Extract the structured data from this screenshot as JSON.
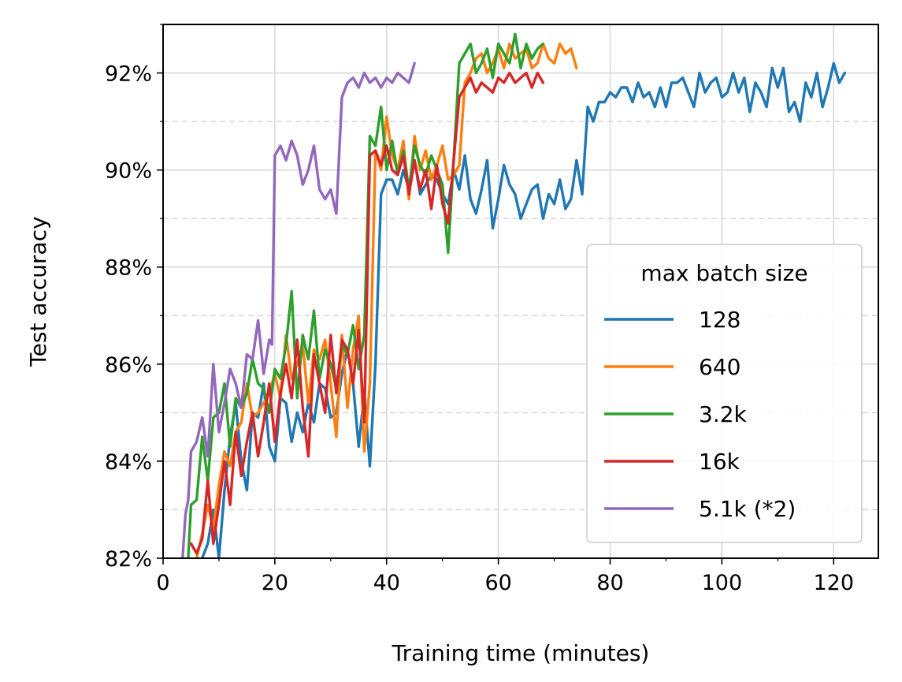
{
  "chart_data": {
    "type": "line",
    "title": "",
    "xlabel": "Training time (minutes)",
    "ylabel": "Test accuracy",
    "xlim": [
      0,
      128
    ],
    "ylim": [
      82,
      93
    ],
    "x_ticks": [
      0,
      20,
      40,
      60,
      80,
      100,
      120
    ],
    "x_tick_labels": [
      "0",
      "20",
      "40",
      "60",
      "80",
      "100",
      "120"
    ],
    "y_ticks": [
      82,
      84,
      86,
      88,
      90,
      92
    ],
    "y_tick_labels": [
      "82%",
      "84%",
      "86%",
      "88%",
      "90%",
      "92%"
    ],
    "y_minor_dashed_grid": [
      83,
      85,
      87,
      89,
      91
    ],
    "grid": true,
    "legend_title": "max batch size",
    "legend_position": "lower right",
    "series": [
      {
        "name": "128",
        "color": "#1f77b4",
        "x": [
          7,
          8,
          9,
          10,
          11,
          12,
          13,
          14,
          15,
          16,
          17,
          18,
          19,
          20,
          21,
          22,
          23,
          24,
          25,
          26,
          27,
          28,
          29,
          30,
          31,
          32,
          33,
          34,
          35,
          36,
          37,
          38,
          39,
          40,
          41,
          42,
          43,
          44,
          45,
          46,
          47,
          48,
          49,
          50,
          51,
          52,
          53,
          54,
          55,
          56,
          57,
          58,
          59,
          60,
          61,
          62,
          63,
          64,
          65,
          66,
          67,
          68,
          69,
          70,
          71,
          72,
          73,
          74,
          75,
          76,
          77,
          78,
          79,
          80,
          81,
          82,
          83,
          84,
          85,
          86,
          87,
          88,
          89,
          90,
          91,
          92,
          93,
          94,
          95,
          96,
          97,
          98,
          99,
          100,
          101,
          102,
          103,
          104,
          105,
          106,
          107,
          108,
          109,
          110,
          111,
          112,
          113,
          114,
          115,
          116,
          117,
          118,
          119,
          120,
          121,
          122
        ],
        "values": [
          82.0,
          82.3,
          83.0,
          82.0,
          83.4,
          84.5,
          85.2,
          84.0,
          83.4,
          85.0,
          84.9,
          85.6,
          84.3,
          84.0,
          85.3,
          85.2,
          84.4,
          85.0,
          84.6,
          85.2,
          84.8,
          85.6,
          85.5,
          84.9,
          85.0,
          85.8,
          86.3,
          85.6,
          84.3,
          85.4,
          83.9,
          86.0,
          89.5,
          89.8,
          89.8,
          89.5,
          90.0,
          89.6,
          90.2,
          89.5,
          89.7,
          89.9,
          89.8,
          89.5,
          89.3,
          90.0,
          89.6,
          90.3,
          89.4,
          89.1,
          89.6,
          90.2,
          88.8,
          89.4,
          90.1,
          89.7,
          89.5,
          89.0,
          89.3,
          89.6,
          89.7,
          89.0,
          89.5,
          89.3,
          89.8,
          89.2,
          89.4,
          90.2,
          89.5,
          91.3,
          91.0,
          91.4,
          91.4,
          91.6,
          91.5,
          91.7,
          91.7,
          91.4,
          91.8,
          91.5,
          91.6,
          91.3,
          91.7,
          91.3,
          91.8,
          91.8,
          91.9,
          91.6,
          91.3,
          92.0,
          91.6,
          91.8,
          91.9,
          91.5,
          91.6,
          92.0,
          91.6,
          91.9,
          91.2,
          91.8,
          91.6,
          91.3,
          92.1,
          91.7,
          92.1,
          91.2,
          91.4,
          91.0,
          91.8,
          91.5,
          92.0,
          91.3,
          91.7,
          92.2,
          91.8,
          92.0
        ]
      },
      {
        "name": "640",
        "color": "#ff7f0e",
        "x": [
          6,
          7,
          8,
          9,
          10,
          11,
          12,
          13,
          14,
          15,
          16,
          17,
          18,
          19,
          20,
          21,
          22,
          23,
          24,
          25,
          26,
          27,
          28,
          29,
          30,
          31,
          32,
          33,
          34,
          35,
          36,
          37,
          38,
          39,
          40,
          41,
          42,
          43,
          44,
          45,
          46,
          47,
          48,
          49,
          50,
          51,
          52,
          53,
          54,
          55,
          56,
          57,
          58,
          59,
          60,
          61,
          62,
          63,
          64,
          65,
          66,
          67,
          68,
          69,
          70,
          71,
          72,
          73,
          74
        ],
        "values": [
          82.0,
          82.5,
          83.1,
          82.6,
          83.5,
          84.2,
          83.9,
          84.6,
          84.8,
          85.6,
          84.9,
          85.0,
          85.2,
          85.4,
          85.8,
          85.3,
          86.6,
          85.7,
          86.0,
          86.4,
          85.2,
          86.3,
          86.1,
          86.5,
          85.6,
          84.5,
          86.6,
          85.1,
          86.3,
          87.0,
          84.2,
          85.6,
          90.4,
          90.0,
          91.1,
          90.3,
          90.0,
          90.6,
          89.4,
          90.7,
          90.0,
          90.4,
          89.8,
          90.1,
          90.5,
          89.8,
          89.9,
          90.1,
          91.8,
          92.0,
          92.3,
          92.4,
          92.0,
          92.2,
          92.5,
          92.1,
          92.6,
          92.3,
          92.4,
          92.5,
          92.1,
          92.2,
          92.6,
          92.3,
          92.2,
          92.6,
          92.4,
          92.5,
          92.1
        ]
      },
      {
        "name": "3.2k",
        "color": "#2ca02c",
        "x": [
          4.5,
          5,
          6,
          7,
          8,
          9,
          10,
          11,
          12,
          13,
          14,
          15,
          16,
          17,
          18,
          19,
          20,
          21,
          22,
          23,
          24,
          25,
          26,
          27,
          28,
          29,
          30,
          31,
          32,
          33,
          34,
          35,
          36,
          37,
          38,
          39,
          40,
          41,
          42,
          43,
          44,
          45,
          46,
          47,
          48,
          49,
          50,
          51,
          52,
          53,
          54,
          55,
          56,
          57,
          58,
          59,
          60,
          61,
          62,
          63,
          64,
          65,
          66,
          67,
          68
        ],
        "values": [
          82.0,
          83.1,
          83.2,
          84.5,
          83.6,
          84.9,
          85.0,
          85.6,
          84.3,
          85.3,
          85.1,
          85.4,
          86.1,
          85.6,
          85.5,
          85.0,
          85.9,
          85.7,
          86.4,
          87.5,
          85.3,
          86.6,
          86.1,
          87.1,
          85.7,
          86.3,
          86.0,
          85.5,
          86.4,
          86.2,
          86.8,
          85.9,
          86.6,
          90.7,
          90.5,
          91.3,
          90.0,
          90.6,
          89.9,
          90.4,
          89.6,
          90.5,
          90.1,
          89.9,
          90.3,
          90.0,
          89.7,
          88.3,
          90.2,
          92.2,
          92.4,
          92.6,
          92.0,
          92.2,
          92.5,
          91.9,
          92.6,
          92.4,
          92.2,
          92.8,
          92.1,
          92.6,
          92.3,
          92.5,
          92.6
        ]
      },
      {
        "name": "16k",
        "color": "#d62728",
        "x": [
          5,
          6,
          7,
          8,
          9,
          10,
          11,
          12,
          13,
          14,
          15,
          16,
          17,
          18,
          19,
          20,
          21,
          22,
          23,
          24,
          25,
          26,
          27,
          28,
          29,
          30,
          31,
          32,
          33,
          34,
          35,
          36,
          37,
          38,
          39,
          40,
          41,
          42,
          43,
          44,
          45,
          46,
          47,
          48,
          49,
          50,
          51,
          52,
          53,
          54,
          55,
          56,
          57,
          58,
          59,
          60,
          61,
          62,
          63,
          64,
          65,
          66,
          67,
          68
        ],
        "values": [
          82.3,
          82.1,
          82.4,
          83.6,
          82.3,
          83.1,
          84.0,
          83.1,
          84.6,
          83.7,
          84.4,
          85.0,
          84.1,
          84.8,
          85.6,
          84.4,
          85.4,
          86.0,
          85.3,
          86.5,
          85.1,
          84.1,
          86.2,
          85.6,
          85.0,
          86.6,
          85.4,
          86.5,
          86.3,
          85.6,
          86.7,
          84.8,
          90.3,
          90.4,
          90.1,
          90.5,
          90.0,
          89.9,
          90.3,
          89.5,
          90.2,
          89.6,
          90.0,
          89.2,
          90.1,
          89.3,
          88.9,
          90.2,
          91.5,
          91.7,
          91.9,
          91.6,
          91.8,
          91.7,
          91.6,
          91.9,
          91.8,
          92.0,
          91.8,
          91.9,
          92.0,
          91.7,
          92.0,
          91.8
        ]
      },
      {
        "name": "5.1k (*2)",
        "color": "#9467bd",
        "x": [
          3.5,
          4,
          4.5,
          5,
          6,
          7,
          8,
          9,
          10,
          11,
          12,
          13,
          14,
          15,
          16,
          17,
          18,
          19,
          19.5,
          20,
          21,
          22,
          23,
          24,
          25,
          26,
          27,
          28,
          29,
          30,
          31,
          32,
          33,
          34,
          35,
          36,
          37,
          38,
          39,
          40,
          41,
          42,
          43,
          44,
          45
        ],
        "values": [
          82.0,
          82.9,
          83.2,
          84.2,
          84.4,
          84.9,
          84.1,
          86.0,
          84.6,
          85.2,
          85.9,
          85.6,
          85.1,
          86.2,
          86.1,
          86.9,
          85.8,
          86.5,
          86.4,
          90.3,
          90.5,
          90.2,
          90.6,
          90.3,
          89.7,
          90.0,
          90.5,
          89.6,
          89.4,
          89.6,
          89.1,
          91.5,
          91.8,
          91.9,
          91.7,
          92.0,
          91.8,
          91.9,
          91.7,
          91.9,
          91.8,
          92.0,
          91.9,
          91.8,
          92.2
        ]
      }
    ]
  }
}
